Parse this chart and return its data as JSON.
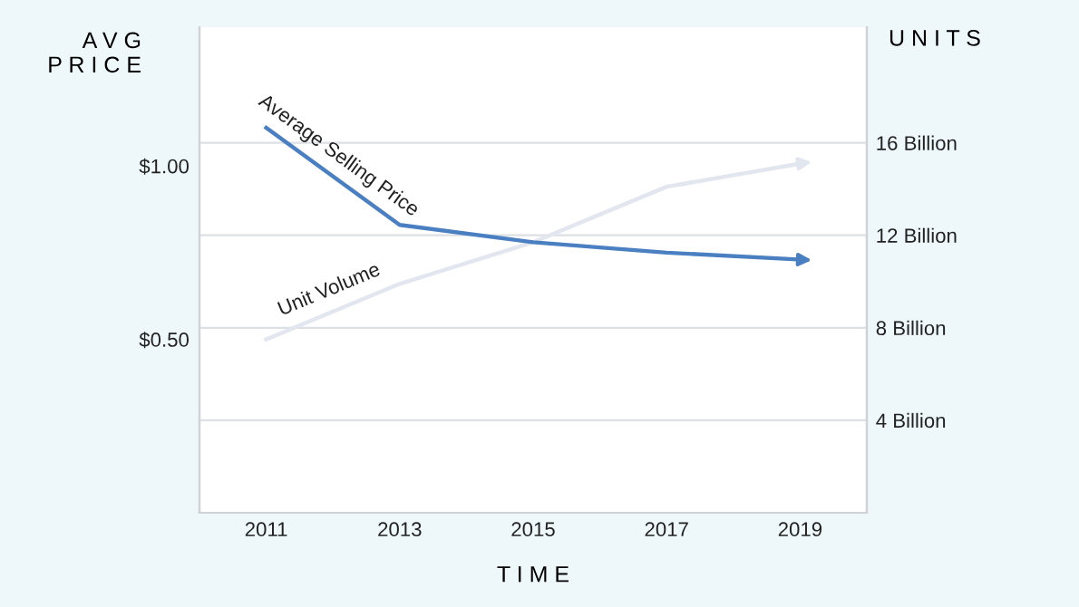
{
  "chart_data": {
    "type": "line",
    "xlabel": "T I M E",
    "ylabel": "A V G\nP R I C E",
    "y2label": "U N I T S",
    "x": [
      2011,
      2013,
      2015,
      2017,
      2019
    ],
    "xlim": [
      2010,
      2020
    ],
    "xticks": [
      2011,
      2013,
      2015,
      2017,
      2019
    ],
    "ylim": [
      0,
      1.4
    ],
    "yticks": [
      {
        "value": 0.5,
        "label": "$0.50"
      },
      {
        "value": 1,
        "label": "$1.00"
      }
    ],
    "y2lim": [
      0,
      21
    ],
    "y2ticks": [
      {
        "value": 4,
        "label": "4 Billion"
      },
      {
        "value": 8,
        "label": "8 Billion"
      },
      {
        "value": 12,
        "label": "12 Billion"
      },
      {
        "value": 16,
        "label": "16 Billion"
      }
    ],
    "grid": "y2",
    "legend": false,
    "marker": "none",
    "line_style": "solid",
    "series": [
      {
        "name": "Average Selling Price",
        "color": "#4a7fc1",
        "values": [
          1.11,
          0.83,
          0.78,
          0.75,
          0.73
        ]
      },
      {
        "name": "Unit Volume",
        "color": "#e2e6ee",
        "axis": "y2",
        "values": [
          7.5,
          9.9,
          11.7,
          14.1,
          15.1
        ]
      }
    ]
  }
}
